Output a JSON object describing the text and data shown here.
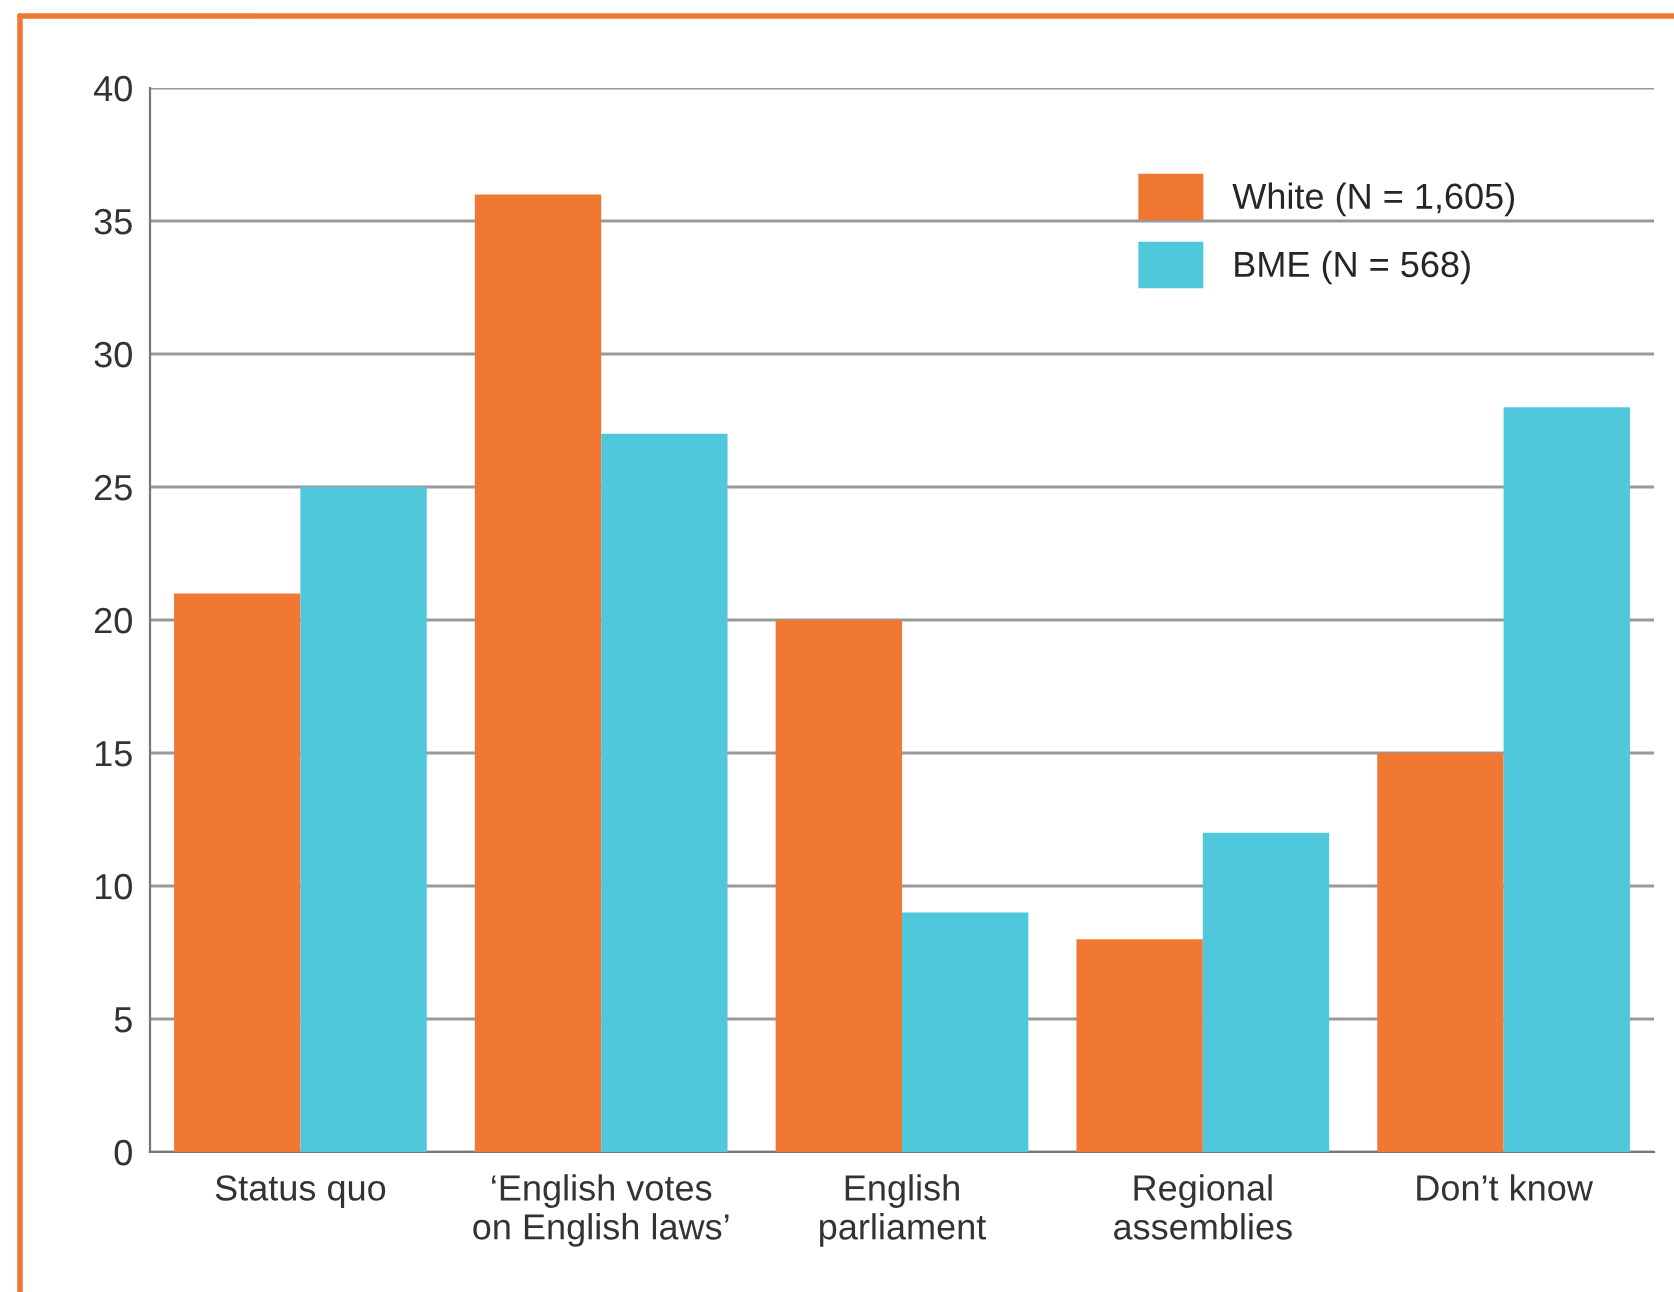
{
  "chart_data": {
    "type": "bar",
    "categories": [
      "Status quo",
      "‘English votes\non English laws’",
      "English\nparliament",
      "Regional\nassemblies",
      "Don’t know"
    ],
    "series": [
      {
        "name": "White (N = 1,605)",
        "color": "#f07832",
        "values": [
          21,
          36,
          20,
          8,
          15
        ]
      },
      {
        "name": "BME (N = 568)",
        "color": "#50c8dc",
        "values": [
          25,
          27,
          9,
          12,
          28
        ]
      }
    ],
    "ylim": [
      0,
      40
    ],
    "yticks": [
      0,
      5,
      10,
      15,
      20,
      25,
      30,
      35,
      40
    ],
    "grid": "y",
    "legend": "top right"
  }
}
